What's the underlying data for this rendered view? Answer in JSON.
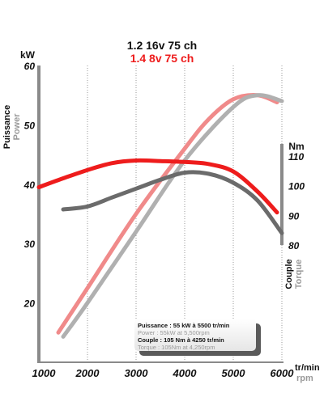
{
  "chart_data": {
    "type": "line",
    "title": "1.2 16v 75 ch",
    "subtitle": "1.4 8v 75 ch",
    "x_axis": {
      "label_fr": "tr/min",
      "label_en": "rpm",
      "ticks": [
        1000,
        2000,
        3000,
        4000,
        5000,
        6000
      ],
      "range": [
        1000,
        6000
      ]
    },
    "y_left_axis": {
      "unit": "kW",
      "label_fr": "Puissance",
      "label_en": "Power",
      "ticks": [
        20,
        30,
        40,
        50,
        60
      ],
      "range": [
        10,
        60
      ]
    },
    "y_right_axis": {
      "unit": "Nm",
      "label_fr": "Couple",
      "label_en": "Torque",
      "ticks": [
        80,
        90,
        100,
        110
      ],
      "range": [
        80,
        120
      ]
    },
    "grid": "vertical-dotted",
    "legend_box": {
      "line1": "Puissance : 55 kW à 5500 tr/min",
      "line2": "Power : 55kW at 5,500rpm",
      "line3": "Couple : 105 Nm à 4250 tr/min",
      "line4": "Torque : 105Nm at 4,250rpm"
    },
    "series": [
      {
        "axis": "left",
        "color": "#f08a8a",
        "x": [
          1400,
          2000,
          3000,
          4000,
          4500,
          5000,
          5500,
          5900
        ],
        "values": [
          15,
          22.5,
          35,
          46,
          51,
          54.3,
          55,
          53.8
        ]
      },
      {
        "axis": "left",
        "color": "#b0b0b0",
        "x": [
          1500,
          2000,
          3000,
          4000,
          5000,
          5500,
          6000
        ],
        "values": [
          14.3,
          20,
          32,
          44,
          53,
          55,
          54
        ]
      },
      {
        "axis": "right",
        "color": "#ee1c1c",
        "x": [
          1000,
          1500,
          2000,
          2500,
          3000,
          3500,
          4000,
          4500,
          5000,
          5500,
          5900
        ],
        "values": [
          99.5,
          102.5,
          105.3,
          107.6,
          108.5,
          108.3,
          108,
          107.3,
          104.8,
          98,
          91
        ]
      },
      {
        "axis": "right",
        "color": "#6b6b6b",
        "x": [
          1500,
          2000,
          2500,
          3000,
          3500,
          4000,
          4500,
          5000,
          5500,
          6000
        ],
        "values": [
          92,
          93,
          96,
          99,
          102,
          104.4,
          104,
          101,
          95,
          84
        ]
      }
    ]
  }
}
